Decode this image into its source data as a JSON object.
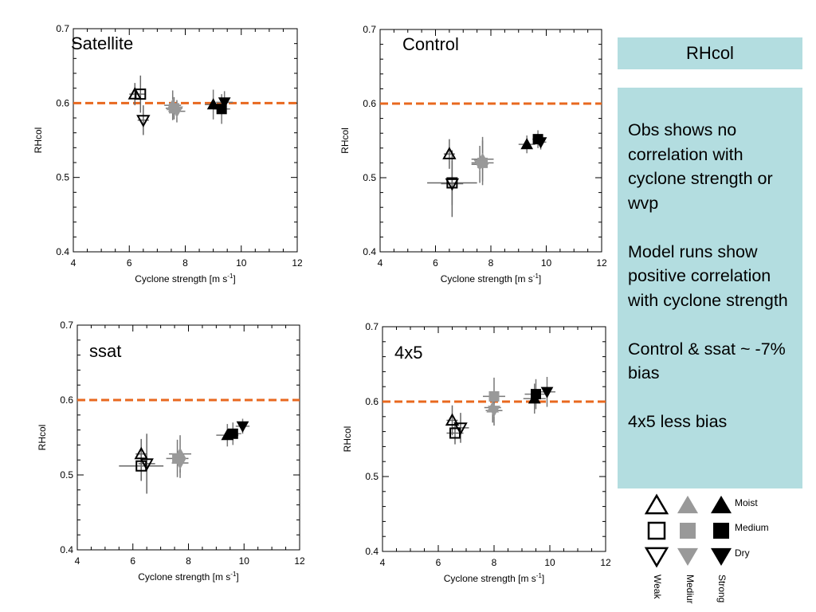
{
  "colors": {
    "threshold_line": "#e8681f",
    "weak": "#000000",
    "medium": "#999999",
    "strong": "#000000",
    "panel_bg": "#b3dde0"
  },
  "chart_data": [
    {
      "type": "scatter",
      "title": "Satellite",
      "xlabel": "Cyclone strength [m s-1]",
      "ylabel": "RHcol",
      "xlim": [
        4,
        12
      ],
      "ylim": [
        0.4,
        0.7
      ],
      "xticks": [
        "4",
        "6",
        "8",
        "10",
        "12"
      ],
      "yticks": [
        "0.4",
        "0.5",
        "0.6",
        "0.7"
      ],
      "reference_line": 0.6,
      "grid": false,
      "points": [
        {
          "cyclone": "Weak",
          "humidity": "Moist",
          "x": 6.2,
          "y": 0.612,
          "xerr": 0.2,
          "yerr": 0.015
        },
        {
          "cyclone": "Weak",
          "humidity": "Medium",
          "x": 6.4,
          "y": 0.612,
          "xerr": 0.15,
          "yerr": 0.025
        },
        {
          "cyclone": "Weak",
          "humidity": "Dry",
          "x": 6.5,
          "y": 0.577,
          "xerr": 0.2,
          "yerr": 0.02
        },
        {
          "cyclone": "Medium",
          "humidity": "Moist",
          "x": 7.55,
          "y": 0.597,
          "xerr": 0.3,
          "yerr": 0.02
        },
        {
          "cyclone": "Medium",
          "humidity": "Medium",
          "x": 7.6,
          "y": 0.593,
          "xerr": 0.3,
          "yerr": 0.015
        },
        {
          "cyclone": "Medium",
          "humidity": "Dry",
          "x": 7.7,
          "y": 0.589,
          "xerr": 0.3,
          "yerr": 0.015
        },
        {
          "cyclone": "Strong",
          "humidity": "Moist",
          "x": 9.0,
          "y": 0.598,
          "xerr": 0.3,
          "yerr": 0.02
        },
        {
          "cyclone": "Strong",
          "humidity": "Medium",
          "x": 9.3,
          "y": 0.592,
          "xerr": 0.3,
          "yerr": 0.02
        },
        {
          "cyclone": "Strong",
          "humidity": "Dry",
          "x": 9.4,
          "y": 0.601,
          "xerr": 0.3,
          "yerr": 0.015
        }
      ]
    },
    {
      "type": "scatter",
      "title": "Control",
      "xlabel": "Cyclone strength [m s-1]",
      "ylabel": "RHcol",
      "xlim": [
        4,
        12
      ],
      "ylim": [
        0.4,
        0.7
      ],
      "xticks": [
        "4",
        "6",
        "8",
        "10",
        "12"
      ],
      "yticks": [
        "0.4",
        "0.5",
        "0.6",
        "0.7"
      ],
      "reference_line": 0.6,
      "grid": false,
      "points": [
        {
          "cyclone": "Weak",
          "humidity": "Moist",
          "x": 6.5,
          "y": 0.532,
          "xerr": 0.2,
          "yerr": 0.02
        },
        {
          "cyclone": "Weak",
          "humidity": "Medium",
          "x": 6.6,
          "y": 0.493,
          "xerr": 0.9,
          "yerr": 0.03
        },
        {
          "cyclone": "Weak",
          "humidity": "Dry",
          "x": 6.6,
          "y": 0.492,
          "xerr": 0.4,
          "yerr": 0.045
        },
        {
          "cyclone": "Medium",
          "humidity": "Moist",
          "x": 7.7,
          "y": 0.525,
          "xerr": 0.4,
          "yerr": 0.03
        },
        {
          "cyclone": "Medium",
          "humidity": "Medium",
          "x": 7.7,
          "y": 0.52,
          "xerr": 0.4,
          "yerr": 0.03
        },
        {
          "cyclone": "Medium",
          "humidity": "Dry",
          "x": 7.6,
          "y": 0.518,
          "xerr": 0.3,
          "yerr": 0.025
        },
        {
          "cyclone": "Strong",
          "humidity": "Moist",
          "x": 9.3,
          "y": 0.545,
          "xerr": 0.3,
          "yerr": 0.012
        },
        {
          "cyclone": "Strong",
          "humidity": "Medium",
          "x": 9.7,
          "y": 0.552,
          "xerr": 0.2,
          "yerr": 0.012
        },
        {
          "cyclone": "Strong",
          "humidity": "Dry",
          "x": 9.8,
          "y": 0.548,
          "xerr": 0.2,
          "yerr": 0.01
        }
      ]
    },
    {
      "type": "scatter",
      "title": "ssat",
      "xlabel": "Cyclone strength [m s-1]",
      "ylabel": "RHcol",
      "xlim": [
        4,
        12
      ],
      "ylim": [
        0.4,
        0.7
      ],
      "xticks": [
        "4",
        "6",
        "8",
        "10",
        "12"
      ],
      "yticks": [
        "0.4",
        "0.5",
        "0.6",
        "0.7"
      ],
      "reference_line": 0.6,
      "grid": false,
      "points": [
        {
          "cyclone": "Weak",
          "humidity": "Moist",
          "x": 6.3,
          "y": 0.528,
          "xerr": 0.2,
          "yerr": 0.02
        },
        {
          "cyclone": "Weak",
          "humidity": "Medium",
          "x": 6.3,
          "y": 0.512,
          "xerr": 0.8,
          "yerr": 0.02
        },
        {
          "cyclone": "Weak",
          "humidity": "Dry",
          "x": 6.5,
          "y": 0.515,
          "xerr": 0.3,
          "yerr": 0.04
        },
        {
          "cyclone": "Medium",
          "humidity": "Moist",
          "x": 7.7,
          "y": 0.528,
          "xerr": 0.4,
          "yerr": 0.025
        },
        {
          "cyclone": "Medium",
          "humidity": "Medium",
          "x": 7.6,
          "y": 0.522,
          "xerr": 0.4,
          "yerr": 0.025
        },
        {
          "cyclone": "Medium",
          "humidity": "Dry",
          "x": 7.7,
          "y": 0.516,
          "xerr": 0.3,
          "yerr": 0.02
        },
        {
          "cyclone": "Strong",
          "humidity": "Moist",
          "x": 9.4,
          "y": 0.553,
          "xerr": 0.4,
          "yerr": 0.015
        },
        {
          "cyclone": "Strong",
          "humidity": "Medium",
          "x": 9.6,
          "y": 0.555,
          "xerr": 0.3,
          "yerr": 0.015
        },
        {
          "cyclone": "Strong",
          "humidity": "Dry",
          "x": 9.95,
          "y": 0.565,
          "xerr": 0.25,
          "yerr": 0.01
        }
      ]
    },
    {
      "type": "scatter",
      "title": "4x5",
      "xlabel": "Cyclone strength [m s-1]",
      "ylabel": "RHcol",
      "xlim": [
        4,
        12
      ],
      "ylim": [
        0.4,
        0.7
      ],
      "xticks": [
        "4",
        "6",
        "8",
        "10",
        "12"
      ],
      "yticks": [
        "0.4",
        "0.5",
        "0.6",
        "0.7"
      ],
      "reference_line": 0.6,
      "grid": false,
      "points": [
        {
          "cyclone": "Weak",
          "humidity": "Moist",
          "x": 6.5,
          "y": 0.575,
          "xerr": 0.2,
          "yerr": 0.02
        },
        {
          "cyclone": "Weak",
          "humidity": "Medium",
          "x": 6.6,
          "y": 0.558,
          "xerr": 0.3,
          "yerr": 0.015
        },
        {
          "cyclone": "Weak",
          "humidity": "Dry",
          "x": 6.8,
          "y": 0.565,
          "xerr": 0.3,
          "yerr": 0.02
        },
        {
          "cyclone": "Medium",
          "humidity": "Moist",
          "x": 7.95,
          "y": 0.592,
          "xerr": 0.3,
          "yerr": 0.02
        },
        {
          "cyclone": "Medium",
          "humidity": "Medium",
          "x": 8.0,
          "y": 0.607,
          "xerr": 0.4,
          "yerr": 0.025
        },
        {
          "cyclone": "Medium",
          "humidity": "Dry",
          "x": 8.0,
          "y": 0.588,
          "xerr": 0.3,
          "yerr": 0.02
        },
        {
          "cyclone": "Strong",
          "humidity": "Moist",
          "x": 9.45,
          "y": 0.604,
          "xerr": 0.4,
          "yerr": 0.02
        },
        {
          "cyclone": "Strong",
          "humidity": "Medium",
          "x": 9.5,
          "y": 0.61,
          "xerr": 0.4,
          "yerr": 0.02
        },
        {
          "cyclone": "Strong",
          "humidity": "Dry",
          "x": 9.9,
          "y": 0.613,
          "xerr": 0.3,
          "yerr": 0.02
        }
      ]
    }
  ],
  "rhcol_title": "RHcol",
  "notes": [
    "Obs shows no correlation with cyclone strength or wvp",
    "Model runs show positive correlation with cyclone strength",
    "Control & ssat ~ -7% bias",
    "4x5  less bias"
  ],
  "legend": {
    "humidity_labels": [
      "Moist",
      "Medium",
      "Dry"
    ],
    "strength_labels": [
      "Weak",
      "Mediur",
      "Strong"
    ]
  }
}
